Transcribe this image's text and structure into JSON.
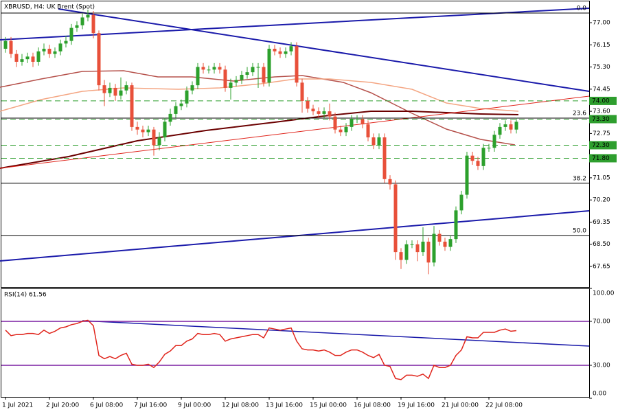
{
  "chart_data": {
    "type": "candlestick",
    "title": "XBRUSD, H4: UK Brent (Spot)",
    "up_color": "#2ca02c",
    "down_color": "#e8503a",
    "categories": [
      "1 Jul 2021",
      null,
      null,
      null,
      null,
      null,
      null,
      null,
      "2 Jul 20:00",
      null,
      null,
      null,
      null,
      null,
      null,
      null,
      "6 Jul 08:00",
      null,
      null,
      null,
      null,
      null,
      null,
      null,
      "7 Jul 16:00",
      null,
      null,
      null,
      null,
      null,
      null,
      null,
      "9 Jul 00:00",
      null,
      null,
      null,
      null,
      null,
      null,
      null,
      "12 Jul 08:00",
      null,
      null,
      null,
      null,
      null,
      null,
      null,
      "13 Jul 16:00",
      null,
      null,
      null,
      null,
      null,
      null,
      null,
      "15 Jul 00:00",
      null,
      null,
      null,
      null,
      null,
      null,
      null,
      "16 Jul 08:00",
      null,
      null,
      null,
      null,
      null,
      null,
      null,
      "19 Jul 16:00",
      null,
      null,
      null,
      null,
      null,
      null,
      null,
      "21 Jul 00:00",
      null,
      null,
      null,
      null,
      null,
      null,
      null,
      "22 Jul 08:00",
      null,
      null,
      null,
      null,
      null
    ],
    "ohlc": [
      [
        76.0,
        76.45,
        75.85,
        76.3
      ],
      [
        76.3,
        76.45,
        75.65,
        75.8
      ],
      [
        75.8,
        75.95,
        75.3,
        75.5
      ],
      [
        75.5,
        75.8,
        75.35,
        75.6
      ],
      [
        75.6,
        75.85,
        75.45,
        75.7
      ],
      [
        75.7,
        75.85,
        75.3,
        75.5
      ],
      [
        75.5,
        76.05,
        75.35,
        75.9
      ],
      [
        75.9,
        76.2,
        75.75,
        76.0
      ],
      [
        76.0,
        76.15,
        75.65,
        75.8
      ],
      [
        75.8,
        76.05,
        75.65,
        75.9
      ],
      [
        75.9,
        76.35,
        75.75,
        76.2
      ],
      [
        76.2,
        76.5,
        76.05,
        76.3
      ],
      [
        76.3,
        76.95,
        76.15,
        76.8
      ],
      [
        76.8,
        77.05,
        76.65,
        76.9
      ],
      [
        76.9,
        77.35,
        76.75,
        77.2
      ],
      [
        77.2,
        77.5,
        77.05,
        77.3
      ],
      [
        77.3,
        77.45,
        76.4,
        76.6
      ],
      [
        76.6,
        76.7,
        74.4,
        74.6
      ],
      [
        74.6,
        74.8,
        73.8,
        74.3
      ],
      [
        74.3,
        74.7,
        74.15,
        74.5
      ],
      [
        74.5,
        74.65,
        74.0,
        74.2
      ],
      [
        74.2,
        74.9,
        74.05,
        74.4
      ],
      [
        74.4,
        74.75,
        74.25,
        74.6
      ],
      [
        74.6,
        74.7,
        72.85,
        73.0
      ],
      [
        73.0,
        73.2,
        72.7,
        72.9
      ],
      [
        72.9,
        73.05,
        72.6,
        72.8
      ],
      [
        72.8,
        73.05,
        72.65,
        72.9
      ],
      [
        72.9,
        73.0,
        71.9,
        72.3
      ],
      [
        72.3,
        72.8,
        72.1,
        72.6
      ],
      [
        72.6,
        73.35,
        72.45,
        73.2
      ],
      [
        73.2,
        73.7,
        73.05,
        73.5
      ],
      [
        73.5,
        73.95,
        73.35,
        73.8
      ],
      [
        73.8,
        74.05,
        73.65,
        73.9
      ],
      [
        73.9,
        74.55,
        73.75,
        74.4
      ],
      [
        74.4,
        74.75,
        74.25,
        74.6
      ],
      [
        74.6,
        75.45,
        74.45,
        75.3
      ],
      [
        75.3,
        75.45,
        75.05,
        75.2
      ],
      [
        75.2,
        75.35,
        75.05,
        75.2
      ],
      [
        75.2,
        75.45,
        75.05,
        75.3
      ],
      [
        75.3,
        75.45,
        75.05,
        75.2
      ],
      [
        75.2,
        75.35,
        74.35,
        74.5
      ],
      [
        74.5,
        74.85,
        74.05,
        74.7
      ],
      [
        74.7,
        74.95,
        74.55,
        74.8
      ],
      [
        74.8,
        75.15,
        74.65,
        75.0
      ],
      [
        75.0,
        75.3,
        74.85,
        75.1
      ],
      [
        75.1,
        75.45,
        74.95,
        75.3
      ],
      [
        75.3,
        75.45,
        74.5,
        75.3
      ],
      [
        75.3,
        75.45,
        74.55,
        74.7
      ],
      [
        74.7,
        76.15,
        74.55,
        76.0
      ],
      [
        76.0,
        76.15,
        75.75,
        75.9
      ],
      [
        75.9,
        76.05,
        75.65,
        75.8
      ],
      [
        75.8,
        76.05,
        75.65,
        75.9
      ],
      [
        75.9,
        76.25,
        75.75,
        76.1
      ],
      [
        76.1,
        76.25,
        74.55,
        74.7
      ],
      [
        74.7,
        74.85,
        73.55,
        74.0
      ],
      [
        74.0,
        74.15,
        73.55,
        73.7
      ],
      [
        73.7,
        73.85,
        73.45,
        73.6
      ],
      [
        73.6,
        73.75,
        73.35,
        73.5
      ],
      [
        73.5,
        73.75,
        73.35,
        73.6
      ],
      [
        73.6,
        73.9,
        73.25,
        73.4
      ],
      [
        73.4,
        73.55,
        72.75,
        72.9
      ],
      [
        72.9,
        73.05,
        72.65,
        72.8
      ],
      [
        72.8,
        73.15,
        72.65,
        73.0
      ],
      [
        73.0,
        73.45,
        72.85,
        73.3
      ],
      [
        73.3,
        73.45,
        73.15,
        73.3
      ],
      [
        73.3,
        73.45,
        72.95,
        73.1
      ],
      [
        73.1,
        73.25,
        72.45,
        72.6
      ],
      [
        72.6,
        72.75,
        72.15,
        72.3
      ],
      [
        72.3,
        72.75,
        72.15,
        72.6
      ],
      [
        72.6,
        72.75,
        70.85,
        71.0
      ],
      [
        71.0,
        71.15,
        70.6,
        70.8
      ],
      [
        70.8,
        70.95,
        67.9,
        68.2
      ],
      [
        68.2,
        68.35,
        67.55,
        67.9
      ],
      [
        67.9,
        68.65,
        67.75,
        68.5
      ],
      [
        68.5,
        68.65,
        68.35,
        68.5
      ],
      [
        68.5,
        68.65,
        67.85,
        68.2
      ],
      [
        68.2,
        69.15,
        68.05,
        68.6
      ],
      [
        68.6,
        68.75,
        67.35,
        67.8
      ],
      [
        67.8,
        69.2,
        67.65,
        68.9
      ],
      [
        68.9,
        69.05,
        68.45,
        68.6
      ],
      [
        68.6,
        68.75,
        68.25,
        68.4
      ],
      [
        68.4,
        68.85,
        68.25,
        68.7
      ],
      [
        68.7,
        69.95,
        68.55,
        69.8
      ],
      [
        69.8,
        70.55,
        69.65,
        70.4
      ],
      [
        70.4,
        72.05,
        70.25,
        71.9
      ],
      [
        71.9,
        72.05,
        71.55,
        71.7
      ],
      [
        71.7,
        71.85,
        71.35,
        71.5
      ],
      [
        71.5,
        72.35,
        71.35,
        72.2
      ],
      [
        72.2,
        72.35,
        72.05,
        72.2
      ],
      [
        72.2,
        72.85,
        72.05,
        72.7
      ],
      [
        72.7,
        73.15,
        72.55,
        73.0
      ],
      [
        73.0,
        73.25,
        72.85,
        73.1
      ],
      [
        73.1,
        73.25,
        72.75,
        72.9
      ],
      [
        72.9,
        73.35,
        72.75,
        73.2
      ]
    ],
    "ylim": [
      66.86,
      77.87
    ],
    "yticks": [
      {
        "value": 77.0,
        "label": "77.00"
      },
      {
        "value": 76.15,
        "label": "76.15"
      },
      {
        "value": 75.3,
        "label": "75.30"
      },
      {
        "value": 74.45,
        "label": "74.45"
      },
      {
        "value": 73.6,
        "label": "73.60"
      },
      {
        "value": 72.75,
        "label": "72.75"
      },
      {
        "value": 71.05,
        "label": "71.05"
      },
      {
        "value": 70.2,
        "label": "70.20"
      },
      {
        "value": 69.35,
        "label": "69.35"
      },
      {
        "value": 68.5,
        "label": "68.50"
      },
      {
        "value": 67.65,
        "label": "67.65"
      }
    ],
    "levels": [
      {
        "value": 74.0,
        "label": "74.00"
      },
      {
        "value": 73.3,
        "label": "73.30"
      },
      {
        "value": 72.3,
        "label": "72.30"
      },
      {
        "value": 71.8,
        "label": "71.80"
      }
    ],
    "level_color": "#2e9e2e",
    "fib_levels": [
      {
        "value": 77.37,
        "label": "0.0"
      },
      {
        "value": 73.34,
        "label": "23.6"
      },
      {
        "value": 70.84,
        "label": "38.2"
      },
      {
        "value": 68.84,
        "label": "50.0"
      }
    ],
    "rsi": {
      "title": "RSI(14) 61.56",
      "color": "#e0241b",
      "values": [
        62,
        57,
        58,
        58,
        59,
        59,
        58,
        62,
        59,
        61,
        64,
        65,
        67,
        68,
        70,
        71,
        66,
        39,
        36,
        38,
        36,
        39,
        41,
        31,
        30,
        30,
        31,
        28,
        33,
        40,
        43,
        48,
        48,
        52,
        54,
        59,
        58,
        58,
        59,
        58,
        52,
        54,
        55,
        56,
        57,
        58,
        58,
        55,
        64,
        63,
        62,
        63,
        64,
        52,
        45,
        44,
        44,
        43,
        44,
        42,
        39,
        39,
        42,
        44,
        44,
        42,
        39,
        37,
        40,
        30,
        29,
        18,
        17,
        21,
        21,
        20,
        22,
        18,
        30,
        28,
        28,
        30,
        39,
        44,
        56,
        55,
        55,
        60,
        60,
        60,
        62,
        63,
        61,
        61.56
      ],
      "ylim": [
        0,
        100
      ],
      "yticks": [
        {
          "value": 100,
          "label": "100.00"
        },
        {
          "value": 70,
          "label": "70.00"
        },
        {
          "value": 30,
          "label": "30.00"
        },
        {
          "value": 0,
          "label": "0.00"
        }
      ],
      "levels": [
        70,
        30
      ],
      "level_color": "#7a1fa2"
    }
  }
}
